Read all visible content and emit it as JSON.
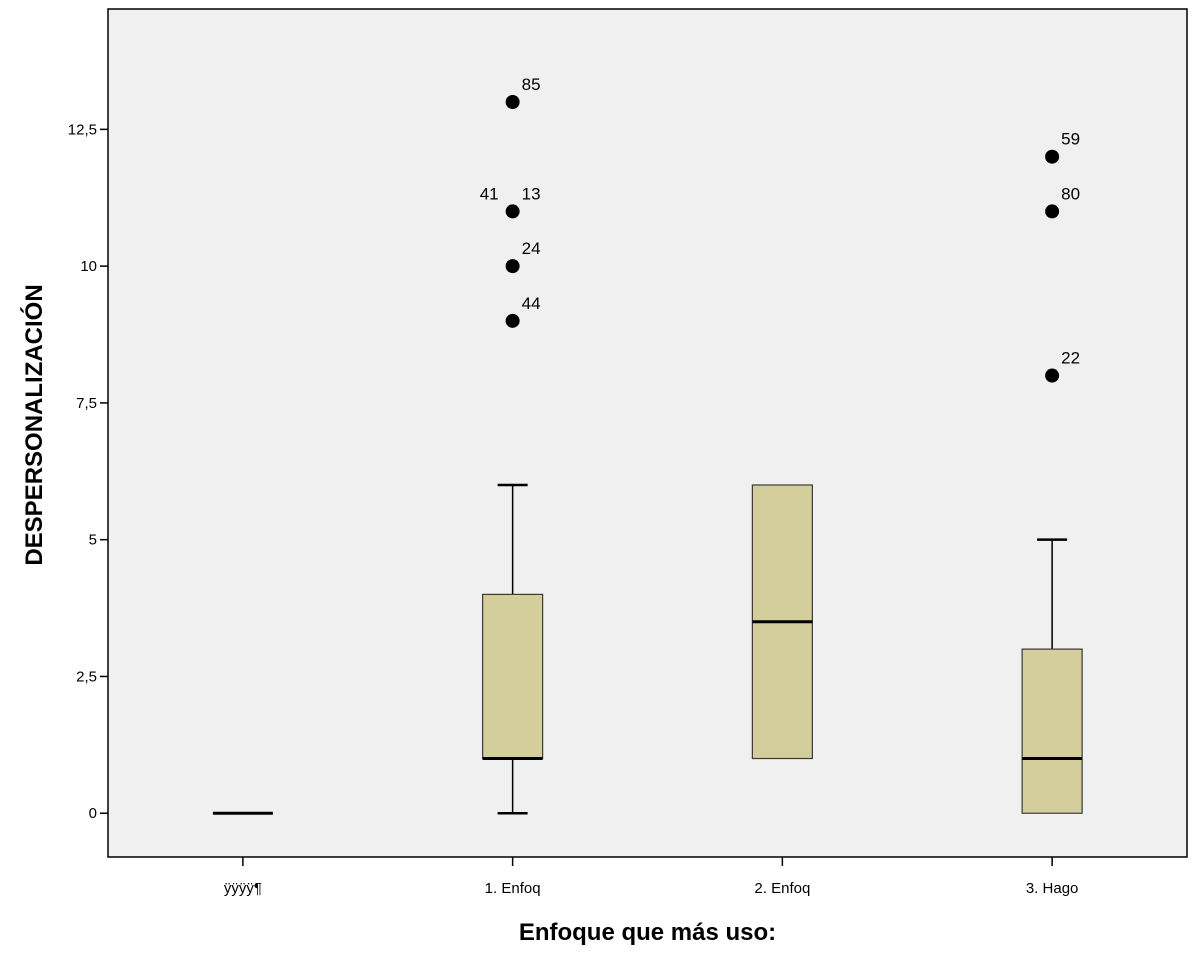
{
  "chart_data": {
    "type": "boxplot",
    "xlabel": "Enfoque que más uso:",
    "ylabel": "DESPERSONALIZACIÓN",
    "ylim": [
      -0.8,
      14.7
    ],
    "yticks": [
      0,
      2.5,
      5,
      7.5,
      10,
      12.5
    ],
    "ytick_labels": [
      "0",
      "2,5",
      "5",
      "7,5",
      "10",
      "12,5"
    ],
    "grid": false,
    "colors": {
      "plot_background": "#f0f0f0",
      "box_fill": "#d3ce9b",
      "box_stroke": "#3a3a3a",
      "frame": "#000000"
    },
    "categories": [
      "ÿÿÿÿ¶",
      "1. Enfoq",
      "2. Enfoq",
      "3. Hago"
    ],
    "boxes": [
      {
        "category": "ÿÿÿÿ¶",
        "whisker_low": 0,
        "q1": 0,
        "median": 0,
        "q3": 0,
        "whisker_high": 0,
        "outliers": []
      },
      {
        "category": "1. Enfoq",
        "whisker_low": 0,
        "q1": 1,
        "median": 1,
        "q3": 4,
        "whisker_high": 6,
        "outliers": [
          {
            "value": 13,
            "labels": [
              "85"
            ]
          },
          {
            "value": 11,
            "labels": [
              "41",
              "13"
            ]
          },
          {
            "value": 10,
            "labels": [
              "24"
            ]
          },
          {
            "value": 9,
            "labels": [
              "44"
            ]
          }
        ]
      },
      {
        "category": "2. Enfoq",
        "whisker_low": 1,
        "q1": 1,
        "median": 3.5,
        "q3": 6,
        "whisker_high": 6,
        "outliers": []
      },
      {
        "category": "3. Hago",
        "whisker_low": 0,
        "q1": 0,
        "median": 1,
        "q3": 3,
        "whisker_high": 5,
        "outliers": [
          {
            "value": 12,
            "labels": [
              "59"
            ]
          },
          {
            "value": 11,
            "labels": [
              "80"
            ]
          },
          {
            "value": 8,
            "labels": [
              "22"
            ]
          }
        ]
      }
    ]
  }
}
